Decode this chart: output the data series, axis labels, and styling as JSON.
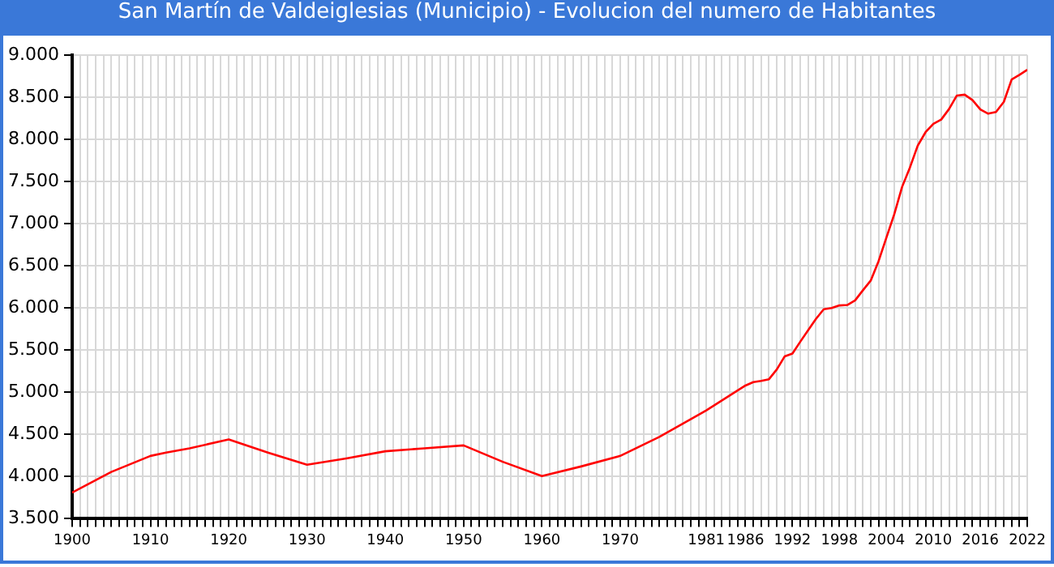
{
  "chart_data": {
    "type": "line",
    "title": "San Martín de Valdeiglesias (Municipio) - Evolucion del numero de Habitantes",
    "x": [
      1900,
      1905,
      1910,
      1912,
      1915,
      1920,
      1925,
      1930,
      1935,
      1940,
      1945,
      1950,
      1955,
      1960,
      1965,
      1970,
      1975,
      1981,
      1986,
      1987,
      1988,
      1989,
      1990,
      1991,
      1992,
      1993,
      1994,
      1995,
      1996,
      1997,
      1998,
      1999,
      2000,
      2001,
      2002,
      2003,
      2004,
      2005,
      2006,
      2007,
      2008,
      2009,
      2010,
      2011,
      2012,
      2013,
      2014,
      2015,
      2016,
      2017,
      2018,
      2019,
      2020,
      2021,
      2022
    ],
    "series": [
      {
        "color": "#ff0000",
        "values": [
          3810,
          4055,
          4245,
          4285,
          4335,
          4440,
          4285,
          4140,
          4215,
          4300,
          4335,
          4370,
          4175,
          4005,
          4120,
          4245,
          4470,
          4785,
          5080,
          5120,
          5135,
          5155,
          5270,
          5425,
          5460,
          5600,
          5735,
          5870,
          5985,
          6000,
          6030,
          6035,
          6090,
          6210,
          6325,
          6555,
          6835,
          7110,
          7435,
          7665,
          7925,
          8085,
          8185,
          8235,
          8360,
          8520,
          8530,
          8465,
          8355,
          8305,
          8325,
          8445,
          8710,
          8765,
          8825
        ]
      }
    ],
    "xlim": [
      1900,
      2022
    ],
    "xticks": [
      1900,
      {
        "value": 1901,
        "label": null
      },
      {
        "value": 1902,
        "label": null
      },
      {
        "value": 1903,
        "label": null
      },
      {
        "value": 1904,
        "label": null
      },
      {
        "value": 1905,
        "label": null
      },
      {
        "value": 1906,
        "label": null
      },
      {
        "value": 1907,
        "label": null
      },
      {
        "value": 1908,
        "label": null
      },
      {
        "value": 1909,
        "label": null
      },
      1910,
      {
        "value": 1911,
        "label": null
      },
      {
        "value": 1912,
        "label": null
      },
      {
        "value": 1913,
        "label": null
      },
      {
        "value": 1914,
        "label": null
      },
      {
        "value": 1915,
        "label": null
      },
      {
        "value": 1916,
        "label": null
      },
      {
        "value": 1917,
        "label": null
      },
      {
        "value": 1918,
        "label": null
      },
      {
        "value": 1919,
        "label": null
      },
      1920,
      {
        "value": 1921,
        "label": null
      },
      {
        "value": 1922,
        "label": null
      },
      {
        "value": 1923,
        "label": null
      },
      {
        "value": 1924,
        "label": null
      },
      {
        "value": 1925,
        "label": null
      },
      {
        "value": 1926,
        "label": null
      },
      {
        "value": 1927,
        "label": null
      },
      {
        "value": 1928,
        "label": null
      },
      {
        "value": 1929,
        "label": null
      },
      1930,
      {
        "value": 1931,
        "label": null
      },
      {
        "value": 1932,
        "label": null
      },
      {
        "value": 1933,
        "label": null
      },
      {
        "value": 1934,
        "label": null
      },
      {
        "value": 1935,
        "label": null
      },
      {
        "value": 1936,
        "label": null
      },
      {
        "value": 1937,
        "label": null
      },
      {
        "value": 1938,
        "label": null
      },
      {
        "value": 1939,
        "label": null
      },
      1940,
      {
        "value": 1941,
        "label": null
      },
      {
        "value": 1942,
        "label": null
      },
      {
        "value": 1943,
        "label": null
      },
      {
        "value": 1944,
        "label": null
      },
      {
        "value": 1945,
        "label": null
      },
      {
        "value": 1946,
        "label": null
      },
      {
        "value": 1947,
        "label": null
      },
      {
        "value": 1948,
        "label": null
      },
      {
        "value": 1949,
        "label": null
      },
      1950,
      {
        "value": 1951,
        "label": null
      },
      {
        "value": 1952,
        "label": null
      },
      {
        "value": 1953,
        "label": null
      },
      {
        "value": 1954,
        "label": null
      },
      {
        "value": 1955,
        "label": null
      },
      {
        "value": 1956,
        "label": null
      },
      {
        "value": 1957,
        "label": null
      },
      {
        "value": 1958,
        "label": null
      },
      {
        "value": 1959,
        "label": null
      },
      1960,
      {
        "value": 1961,
        "label": null
      },
      {
        "value": 1962,
        "label": null
      },
      {
        "value": 1963,
        "label": null
      },
      {
        "value": 1964,
        "label": null
      },
      {
        "value": 1965,
        "label": null
      },
      {
        "value": 1966,
        "label": null
      },
      {
        "value": 1967,
        "label": null
      },
      {
        "value": 1968,
        "label": null
      },
      {
        "value": 1969,
        "label": null
      },
      1970,
      {
        "value": 1971,
        "label": null
      },
      {
        "value": 1972,
        "label": null
      },
      {
        "value": 1973,
        "label": null
      },
      {
        "value": 1974,
        "label": null
      },
      {
        "value": 1975,
        "label": null
      },
      {
        "value": 1976,
        "label": null
      },
      {
        "value": 1977,
        "label": null
      },
      {
        "value": 1978,
        "label": null
      },
      {
        "value": 1979,
        "label": null
      },
      {
        "value": 1980,
        "label": null
      },
      1981,
      {
        "value": 1982,
        "label": null
      },
      {
        "value": 1983,
        "label": null
      },
      {
        "value": 1984,
        "label": null
      },
      {
        "value": 1985,
        "label": null
      },
      1986,
      {
        "value": 1987,
        "label": null
      },
      {
        "value": 1988,
        "label": null
      },
      {
        "value": 1989,
        "label": null
      },
      {
        "value": 1990,
        "label": null
      },
      {
        "value": 1991,
        "label": null
      },
      1992,
      {
        "value": 1993,
        "label": null
      },
      {
        "value": 1994,
        "label": null
      },
      {
        "value": 1995,
        "label": null
      },
      {
        "value": 1996,
        "label": null
      },
      {
        "value": 1997,
        "label": null
      },
      1998,
      {
        "value": 1999,
        "label": null
      },
      {
        "value": 2000,
        "label": null
      },
      {
        "value": 2001,
        "label": null
      },
      {
        "value": 2002,
        "label": null
      },
      {
        "value": 2003,
        "label": null
      },
      2004,
      {
        "value": 2005,
        "label": null
      },
      {
        "value": 2006,
        "label": null
      },
      {
        "value": 2007,
        "label": null
      },
      {
        "value": 2008,
        "label": null
      },
      {
        "value": 2009,
        "label": null
      },
      2010,
      {
        "value": 2011,
        "label": null
      },
      {
        "value": 2012,
        "label": null
      },
      {
        "value": 2013,
        "label": null
      },
      {
        "value": 2014,
        "label": null
      },
      {
        "value": 2015,
        "label": null
      },
      2016,
      {
        "value": 2017,
        "label": null
      },
      {
        "value": 2018,
        "label": null
      },
      {
        "value": 2019,
        "label": null
      },
      {
        "value": 2020,
        "label": null
      },
      {
        "value": 2021,
        "label": null
      },
      2022
    ],
    "ylim": [
      3500,
      9000
    ],
    "yticks": [
      {
        "value": 3500,
        "label": "3.500"
      },
      {
        "value": 4000,
        "label": "4.000"
      },
      {
        "value": 4500,
        "label": "4.500"
      },
      {
        "value": 5000,
        "label": "5.000"
      },
      {
        "value": 5500,
        "label": "5.500"
      },
      {
        "value": 6000,
        "label": "6.000"
      },
      {
        "value": 6500,
        "label": "6.500"
      },
      {
        "value": 7000,
        "label": "7.000"
      },
      {
        "value": 7500,
        "label": "7.500"
      },
      {
        "value": 8000,
        "label": "8.000"
      },
      {
        "value": 8500,
        "label": "8.500"
      },
      {
        "value": 9000,
        "label": "9.000"
      }
    ],
    "grid": true,
    "legend": false,
    "marker": "none",
    "line_style": "solid"
  }
}
